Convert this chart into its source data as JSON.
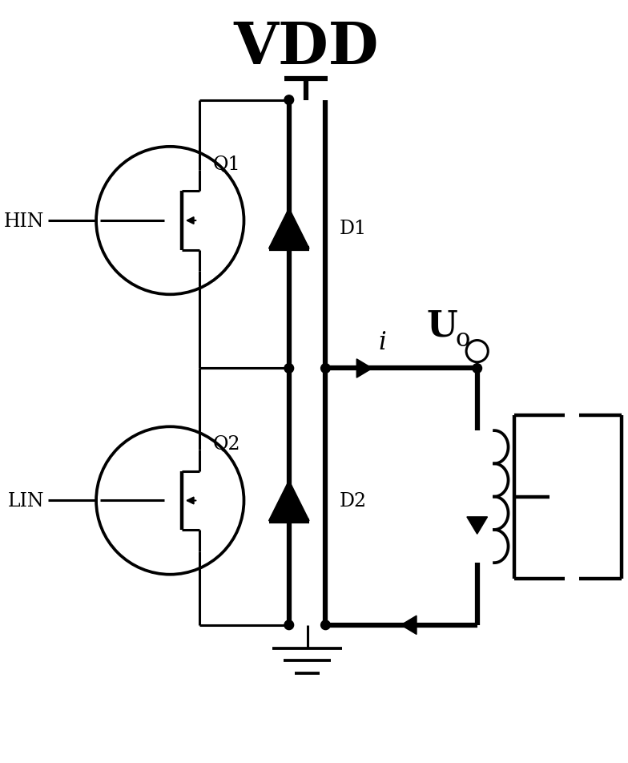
{
  "title": "VDD",
  "label_HIN": "HIN",
  "label_LIN": "LIN",
  "label_Q1": "Q1",
  "label_Q2": "Q2",
  "label_D1": "D1",
  "label_D2": "D2",
  "label_i": "i",
  "label_Uo": "U",
  "bg_color": "#ffffff",
  "line_color": "#000000",
  "lw": 2.2,
  "lw_thick": 4.5
}
